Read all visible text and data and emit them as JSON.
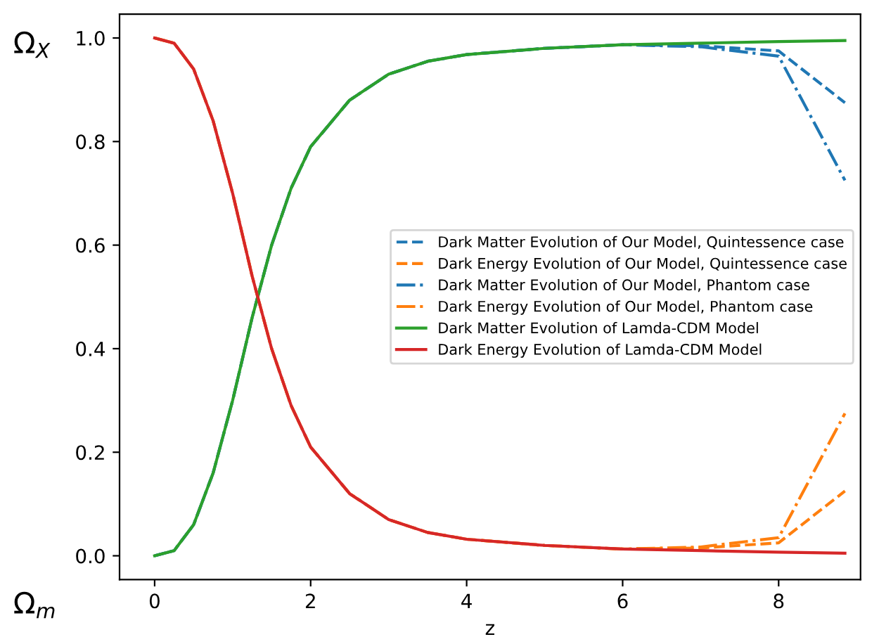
{
  "chart_data": {
    "type": "line",
    "xlabel": "z",
    "annotations": [
      "Ω$_{X}$",
      "Ω$_{m}$"
    ],
    "x": [
      0,
      0.25,
      0.5,
      0.75,
      1.0,
      1.25,
      1.5,
      1.75,
      2.0,
      2.5,
      3.0,
      3.5,
      4.0,
      5.0,
      6.0,
      7.0,
      8.0,
      8.85
    ],
    "series": [
      {
        "name": "Dark Matter Evolution of Our Model, Quintessence case",
        "color": "#1f77b4",
        "line_style": "dashed",
        "values": [
          0,
          0.01,
          0.06,
          0.16,
          0.3,
          0.46,
          0.6,
          0.71,
          0.79,
          0.88,
          0.93,
          0.955,
          0.968,
          0.98,
          0.987,
          0.985,
          0.975,
          0.875
        ]
      },
      {
        "name": "Dark Energy Evolution of Our Model, Quintessence case",
        "color": "#ff7f0e",
        "line_style": "dashed",
        "values": [
          1,
          0.99,
          0.94,
          0.84,
          0.7,
          0.54,
          0.4,
          0.29,
          0.21,
          0.12,
          0.07,
          0.045,
          0.032,
          0.02,
          0.013,
          0.015,
          0.025,
          0.125
        ]
      },
      {
        "name": "Dark Matter Evolution of Our Model, Phantom case",
        "color": "#1f77b4",
        "line_style": "dashdot",
        "values": [
          0,
          0.01,
          0.06,
          0.16,
          0.3,
          0.46,
          0.6,
          0.71,
          0.79,
          0.88,
          0.93,
          0.955,
          0.968,
          0.98,
          0.987,
          0.983,
          0.965,
          0.725
        ]
      },
      {
        "name": "Dark Energy Evolution of Our Model, Phantom case",
        "color": "#ff7f0e",
        "line_style": "dashdot",
        "values": [
          1,
          0.99,
          0.94,
          0.84,
          0.7,
          0.54,
          0.4,
          0.29,
          0.21,
          0.12,
          0.07,
          0.045,
          0.032,
          0.02,
          0.013,
          0.017,
          0.035,
          0.275
        ]
      },
      {
        "name": "Dark Matter Evolution of Lamda-CDM Model",
        "color": "#2ca02c",
        "line_style": "solid",
        "values": [
          0,
          0.01,
          0.06,
          0.16,
          0.3,
          0.46,
          0.6,
          0.71,
          0.79,
          0.88,
          0.93,
          0.955,
          0.968,
          0.98,
          0.987,
          0.99,
          0.993,
          0.995
        ]
      },
      {
        "name": "Dark Energy Evolution of Lamda-CDM Model",
        "color": "#d62728",
        "line_style": "solid",
        "values": [
          1,
          0.99,
          0.94,
          0.84,
          0.7,
          0.54,
          0.4,
          0.29,
          0.21,
          0.12,
          0.07,
          0.045,
          0.032,
          0.02,
          0.013,
          0.01,
          0.007,
          0.005
        ]
      }
    ],
    "xlim": [
      -0.45,
      9.05
    ],
    "ylim": [
      -0.046,
      1.046
    ],
    "xticks": [
      0,
      2,
      4,
      6,
      8
    ],
    "yticks": [
      {
        "value": 0,
        "label": "0.0"
      },
      {
        "value": 0.2,
        "label": "0.2"
      },
      {
        "value": 0.4,
        "label": "0.4"
      },
      {
        "value": 0.6,
        "label": "0.6"
      },
      {
        "value": 0.8,
        "label": "0.8"
      },
      {
        "value": 1,
        "label": "1.0"
      }
    ],
    "legend": "right",
    "grid": false
  }
}
